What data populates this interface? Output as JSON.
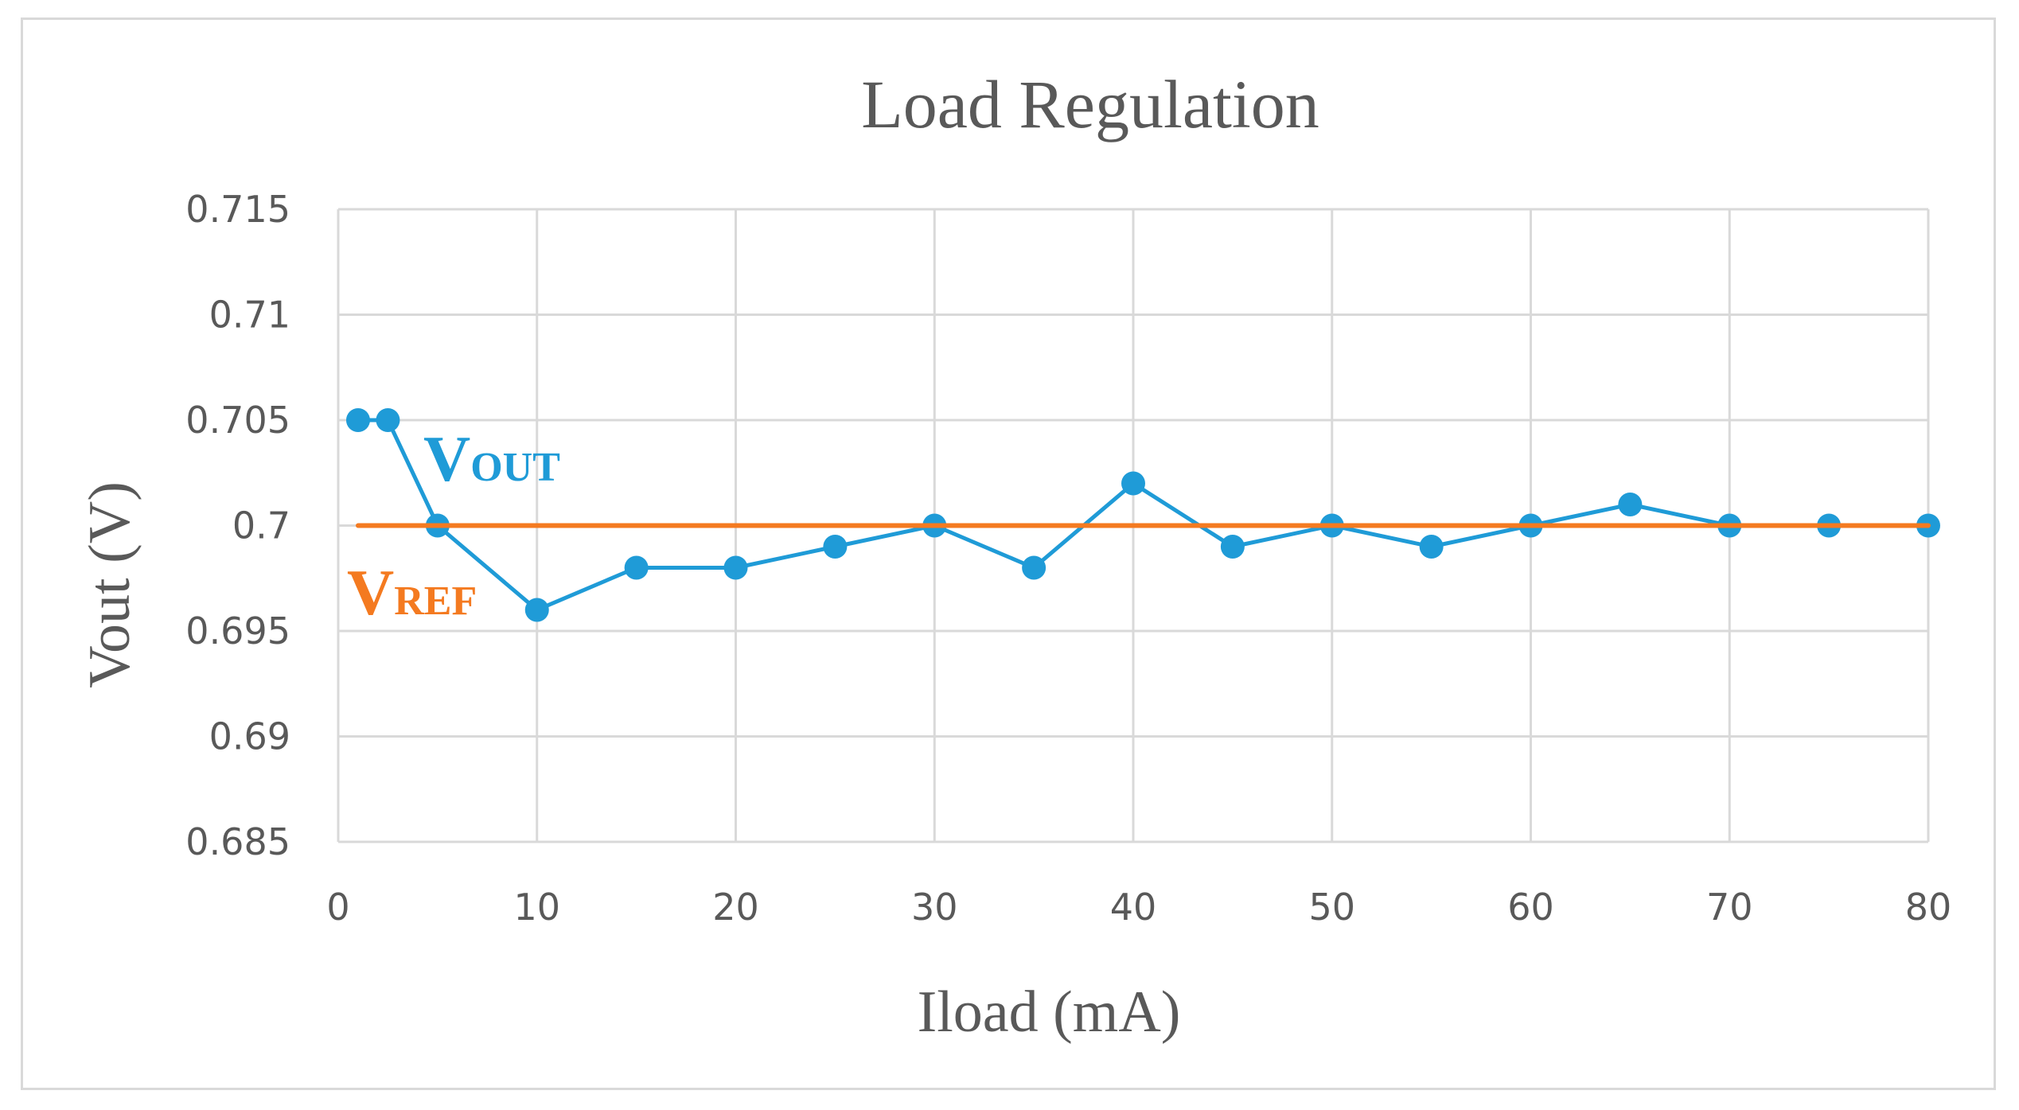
{
  "chart_data": {
    "type": "line",
    "title": "Load Regulation",
    "xlabel": "Iload (mA)",
    "ylabel": "Vout (V)",
    "xlim": [
      0,
      80
    ],
    "ylim": [
      0.685,
      0.715
    ],
    "xticks": [
      0,
      10,
      20,
      30,
      40,
      50,
      60,
      70,
      80
    ],
    "yticks": [
      0.685,
      0.69,
      0.695,
      0.7,
      0.705,
      0.71,
      0.715
    ],
    "ytick_labels": [
      "0.685",
      "0.69",
      "0.695",
      "0.7",
      "0.705",
      "0.71",
      "0.715"
    ],
    "grid": true,
    "series": [
      {
        "key": "vout",
        "label_main": "V",
        "label_sub": "OUT",
        "color": "#1f9bd7",
        "markers": true,
        "x": [
          1,
          2.5,
          5,
          10,
          15,
          20,
          25,
          30,
          35,
          40,
          45,
          50,
          55,
          60,
          65,
          70,
          75,
          80
        ],
        "y": [
          0.705,
          0.705,
          0.7,
          0.696,
          0.698,
          0.698,
          0.699,
          0.7,
          0.698,
          0.702,
          0.699,
          0.7,
          0.699,
          0.7,
          0.701,
          0.7,
          0.7,
          0.7
        ]
      },
      {
        "key": "vref",
        "label_main": "V",
        "label_sub": "REF",
        "color": "#f47a20",
        "markers": false,
        "x": [
          1,
          80
        ],
        "y": [
          0.7,
          0.7
        ]
      }
    ]
  }
}
